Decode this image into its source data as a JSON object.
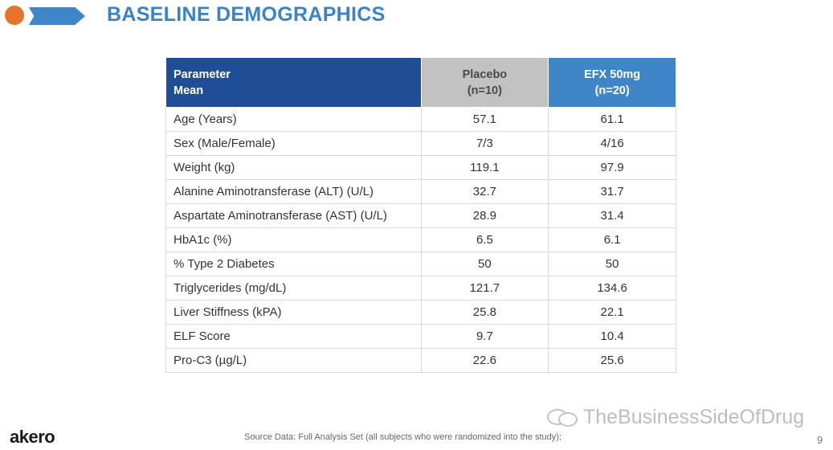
{
  "slide": {
    "title": "BASELINE DEMOGRAPHICS",
    "accent_colors": {
      "dot": "#e8742b",
      "chevron": "#3f86c8",
      "title": "#3a83c6"
    }
  },
  "table": {
    "header": {
      "param_line1": "Parameter",
      "param_line2": "Mean",
      "placebo_line1": "Placebo",
      "placebo_line2": "(n=10)",
      "efx_line1": "EFX 50mg",
      "efx_line2": "(n=20)"
    },
    "rows": [
      {
        "parameter": "Age (Years)",
        "placebo": "57.1",
        "efx": "61.1"
      },
      {
        "parameter": "Sex (Male/Female)",
        "placebo": "7/3",
        "efx": "4/16"
      },
      {
        "parameter": "Weight (kg)",
        "placebo": "119.1",
        "efx": "97.9"
      },
      {
        "parameter": "Alanine Aminotransferase (ALT) (U/L)",
        "placebo": "32.7",
        "efx": "31.7"
      },
      {
        "parameter": "Aspartate Aminotransferase (AST) (U/L)",
        "placebo": "28.9",
        "efx": "31.4"
      },
      {
        "parameter": "HbA1c (%)",
        "placebo": "6.5",
        "efx": "6.1"
      },
      {
        "parameter": "% Type 2 Diabetes",
        "placebo": "50",
        "efx": "50"
      },
      {
        "parameter": "Triglycerides (mg/dL)",
        "placebo": "121.7",
        "efx": "134.6"
      },
      {
        "parameter": "Liver Stiffness (kPA)",
        "placebo": "25.8",
        "efx": "22.1"
      },
      {
        "parameter": "ELF Score",
        "placebo": "9.7",
        "efx": "10.4"
      },
      {
        "parameter": "Pro-C3 (µg/L)",
        "placebo": "22.6",
        "efx": "25.6"
      }
    ]
  },
  "footer": {
    "logo": "akero",
    "source": "Source Data: Full Analysis Set (all subjects who were randomized into the study);",
    "watermark": "TheBusinessSideOfDrug",
    "page_number": "9"
  }
}
